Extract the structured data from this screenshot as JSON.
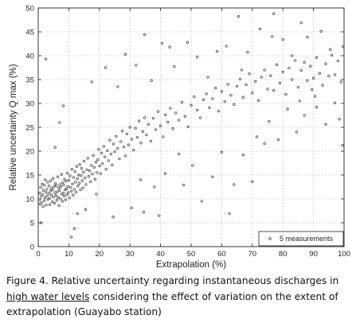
{
  "chart_data": {
    "type": "scatter",
    "xlabel": "Extrapolation (%)",
    "ylabel": "Relative uncertainty Q max (%)",
    "xlim": [
      0,
      100
    ],
    "ylim": [
      0,
      50
    ],
    "xticks": [
      0,
      10,
      20,
      30,
      40,
      50,
      60,
      70,
      80,
      90,
      100
    ],
    "yticks": [
      0,
      5,
      10,
      15,
      20,
      25,
      30,
      35,
      40,
      45,
      50
    ],
    "grid": true,
    "legend_position": "bottom-right",
    "marker": "circle-open",
    "series": [
      {
        "name": "5 measurements",
        "points": [
          [
            0.3,
            9.8
          ],
          [
            0.5,
            11.2
          ],
          [
            0.6,
            8.9
          ],
          [
            0.8,
            12.4
          ],
          [
            1.0,
            10.5
          ],
          [
            1.1,
            9.2
          ],
          [
            1.3,
            13.1
          ],
          [
            1.4,
            10.9
          ],
          [
            1.6,
            8.4
          ],
          [
            1.7,
            11.8
          ],
          [
            1.9,
            12.9
          ],
          [
            2.0,
            9.6
          ],
          [
            2.2,
            10.2
          ],
          [
            2.3,
            14.0
          ],
          [
            2.5,
            11.4
          ],
          [
            2.6,
            8.7
          ],
          [
            2.8,
            12.0
          ],
          [
            2.9,
            10.6
          ],
          [
            3.1,
            13.5
          ],
          [
            3.2,
            9.9
          ],
          [
            3.4,
            11.1
          ],
          [
            3.5,
            12.7
          ],
          [
            3.7,
            10.1
          ],
          [
            3.8,
            8.8
          ],
          [
            4.0,
            11.6
          ],
          [
            4.1,
            13.8
          ],
          [
            4.3,
            10.8
          ],
          [
            4.4,
            12.2
          ],
          [
            4.6,
            9.4
          ],
          [
            4.7,
            11.9
          ],
          [
            4.9,
            14.3
          ],
          [
            5.0,
            10.4
          ],
          [
            5.2,
            12.6
          ],
          [
            5.3,
            9.1
          ],
          [
            5.5,
            11.3
          ],
          [
            5.6,
            13.2
          ],
          [
            5.8,
            10.7
          ],
          [
            5.9,
            12.8
          ],
          [
            6.1,
            9.7
          ],
          [
            6.2,
            11.5
          ],
          [
            6.4,
            14.6
          ],
          [
            6.5,
            10.3
          ],
          [
            6.7,
            12.3
          ],
          [
            6.8,
            8.6
          ],
          [
            7.0,
            11.7
          ],
          [
            7.1,
            13.0
          ],
          [
            7.3,
            10.0
          ],
          [
            7.4,
            12.5
          ],
          [
            7.6,
            15.1
          ],
          [
            7.7,
            11.0
          ],
          [
            7.9,
            9.5
          ],
          [
            8.0,
            13.4
          ],
          [
            8.2,
            11.2
          ],
          [
            8.3,
            12.9
          ],
          [
            8.5,
            10.6
          ],
          [
            8.6,
            14.1
          ],
          [
            8.8,
            11.9
          ],
          [
            8.9,
            9.8
          ],
          [
            9.1,
            13.7
          ],
          [
            9.2,
            12.1
          ],
          [
            9.4,
            10.9
          ],
          [
            9.5,
            15.4
          ],
          [
            9.7,
            12.6
          ],
          [
            9.8,
            11.3
          ],
          [
            10.0,
            13.9
          ],
          [
            10.2,
            10.2
          ],
          [
            10.4,
            14.8
          ],
          [
            10.6,
            12.4
          ],
          [
            10.8,
            11.6
          ],
          [
            11.0,
            16.2
          ],
          [
            11.2,
            13.1
          ],
          [
            11.4,
            10.8
          ],
          [
            11.6,
            14.5
          ],
          [
            11.8,
            12.0
          ],
          [
            12.0,
            15.7
          ],
          [
            12.2,
            13.5
          ],
          [
            12.4,
            11.4
          ],
          [
            12.6,
            16.8
          ],
          [
            12.8,
            14.2
          ],
          [
            13.0,
            12.7
          ],
          [
            13.2,
            15.0
          ],
          [
            13.4,
            13.3
          ],
          [
            13.6,
            17.2
          ],
          [
            13.8,
            11.9
          ],
          [
            14.0,
            14.9
          ],
          [
            14.2,
            16.4
          ],
          [
            14.4,
            13.8
          ],
          [
            14.6,
            12.3
          ],
          [
            14.8,
            15.6
          ],
          [
            15.0,
            17.9
          ],
          [
            15.3,
            14.4
          ],
          [
            15.6,
            13.0
          ],
          [
            15.9,
            16.1
          ],
          [
            16.2,
            18.5
          ],
          [
            16.5,
            14.7
          ],
          [
            16.8,
            15.9
          ],
          [
            17.1,
            13.6
          ],
          [
            17.4,
            17.0
          ],
          [
            17.7,
            15.2
          ],
          [
            18.0,
            19.1
          ],
          [
            18.3,
            16.6
          ],
          [
            18.6,
            14.1
          ],
          [
            18.9,
            17.7
          ],
          [
            19.2,
            15.5
          ],
          [
            19.5,
            18.2
          ],
          [
            19.8,
            20.4
          ],
          [
            20.1,
            16.9
          ],
          [
            20.4,
            15.3
          ],
          [
            20.7,
            19.6
          ],
          [
            21.0,
            17.4
          ],
          [
            21.4,
            21.0
          ],
          [
            21.8,
            18.8
          ],
          [
            22.2,
            16.2
          ],
          [
            22.6,
            20.1
          ],
          [
            23.0,
            18.0
          ],
          [
            23.4,
            22.3
          ],
          [
            23.8,
            19.4
          ],
          [
            24.2,
            17.1
          ],
          [
            24.6,
            21.5
          ],
          [
            25.0,
            19.9
          ],
          [
            25.5,
            23.1
          ],
          [
            26.0,
            20.6
          ],
          [
            26.5,
            18.4
          ],
          [
            27.0,
            22.0
          ],
          [
            27.5,
            24.2
          ],
          [
            28.0,
            20.9
          ],
          [
            28.5,
            19.0
          ],
          [
            29.0,
            23.6
          ],
          [
            29.5,
            21.3
          ],
          [
            30.0,
            25.0
          ],
          [
            30.6,
            22.5
          ],
          [
            31.2,
            20.2
          ],
          [
            31.8,
            24.8
          ],
          [
            32.4,
            22.9
          ],
          [
            33.0,
            26.3
          ],
          [
            33.6,
            21.7
          ],
          [
            34.2,
            24.1
          ],
          [
            34.8,
            27.0
          ],
          [
            35.4,
            23.4
          ],
          [
            36.0,
            25.6
          ],
          [
            36.8,
            22.1
          ],
          [
            37.6,
            26.9
          ],
          [
            38.4,
            24.5
          ],
          [
            39.2,
            28.3
          ],
          [
            40.0,
            25.3
          ],
          [
            40.8,
            23.0
          ],
          [
            41.6,
            27.6
          ],
          [
            42.4,
            26.1
          ],
          [
            43.2,
            29.0
          ],
          [
            44.0,
            24.7
          ],
          [
            45.0,
            28.0
          ],
          [
            46.0,
            26.5
          ],
          [
            47.0,
            30.2
          ],
          [
            48.0,
            27.3
          ],
          [
            49.0,
            25.1
          ],
          [
            50.0,
            29.6
          ],
          [
            51.0,
            31.4
          ],
          [
            52.0,
            28.6
          ],
          [
            53.0,
            27.0
          ],
          [
            54.0,
            30.8
          ],
          [
            55.0,
            32.0
          ],
          [
            56.0,
            29.1
          ],
          [
            57.0,
            31.0
          ],
          [
            58.0,
            33.2
          ],
          [
            59.0,
            28.4
          ],
          [
            60.0,
            32.5
          ],
          [
            61.0,
            30.4
          ],
          [
            62.0,
            34.0
          ],
          [
            63.0,
            31.7
          ],
          [
            64.0,
            29.8
          ],
          [
            65.0,
            33.6
          ],
          [
            66.0,
            35.1
          ],
          [
            67.0,
            31.3
          ],
          [
            68.0,
            33.9
          ],
          [
            69.0,
            36.2
          ],
          [
            70.0,
            32.2
          ],
          [
            71.0,
            34.6
          ],
          [
            72.0,
            30.6
          ],
          [
            73.0,
            35.5
          ],
          [
            74.0,
            37.0
          ],
          [
            75.0,
            33.0
          ],
          [
            76.0,
            35.8
          ],
          [
            77.0,
            32.7
          ],
          [
            78.0,
            38.1
          ],
          [
            79.0,
            34.3
          ],
          [
            80.0,
            36.6
          ],
          [
            81.0,
            31.9
          ],
          [
            82.0,
            37.4
          ],
          [
            83.0,
            35.0
          ],
          [
            84.0,
            39.0
          ],
          [
            85.0,
            33.4
          ],
          [
            86.0,
            36.9
          ],
          [
            87.0,
            38.6
          ],
          [
            88.0,
            34.8
          ],
          [
            89.0,
            37.8
          ],
          [
            90.0,
            35.3
          ],
          [
            91.0,
            39.6
          ],
          [
            92.0,
            36.3
          ],
          [
            93.0,
            33.8
          ],
          [
            94.0,
            38.3
          ],
          [
            95.0,
            35.7
          ],
          [
            96.0,
            40.1
          ],
          [
            97.0,
            36.0
          ],
          [
            98.0,
            38.9
          ],
          [
            99.0,
            34.5
          ],
          [
            1.0,
            5.0
          ],
          [
            2.5,
            39.3
          ],
          [
            5.5,
            20.8
          ],
          [
            7.0,
            26.0
          ],
          [
            8.2,
            29.5
          ],
          [
            10.8,
            2.0
          ],
          [
            11.8,
            3.8
          ],
          [
            12.8,
            6.9
          ],
          [
            15.5,
            7.8
          ],
          [
            17.5,
            34.5
          ],
          [
            19.0,
            11.0
          ],
          [
            22.0,
            37.5
          ],
          [
            24.5,
            6.2
          ],
          [
            26.0,
            33.5
          ],
          [
            28.5,
            40.3
          ],
          [
            30.5,
            8.1
          ],
          [
            32.0,
            38.0
          ],
          [
            33.5,
            14.0
          ],
          [
            34.5,
            7.2
          ],
          [
            34.8,
            44.4
          ],
          [
            37.0,
            34.8
          ],
          [
            38.0,
            12.5
          ],
          [
            39.5,
            6.5
          ],
          [
            40.5,
            42.6
          ],
          [
            41.5,
            15.3
          ],
          [
            43.0,
            41.8
          ],
          [
            44.5,
            37.7
          ],
          [
            46.0,
            19.4
          ],
          [
            47.5,
            12.9
          ],
          [
            48.8,
            42.8
          ],
          [
            50.5,
            17.0
          ],
          [
            52.0,
            39.7
          ],
          [
            53.5,
            9.5
          ],
          [
            55.5,
            35.5
          ],
          [
            57.0,
            14.6
          ],
          [
            58.5,
            40.9
          ],
          [
            60.0,
            19.8
          ],
          [
            61.5,
            42.0
          ],
          [
            62.5,
            6.9
          ],
          [
            64.0,
            13.0
          ],
          [
            65.5,
            48.2
          ],
          [
            67.0,
            19.2
          ],
          [
            68.5,
            40.7
          ],
          [
            70.0,
            13.6
          ],
          [
            71.5,
            23.0
          ],
          [
            72.5,
            45.6
          ],
          [
            74.0,
            21.6
          ],
          [
            75.5,
            26.2
          ],
          [
            77.0,
            48.8
          ],
          [
            78.5,
            22.4
          ],
          [
            80.0,
            43.4
          ],
          [
            81.5,
            28.8
          ],
          [
            83.0,
            40.0
          ],
          [
            84.5,
            24.0
          ],
          [
            86.0,
            46.9
          ],
          [
            87.0,
            27.5
          ],
          [
            88.0,
            43.9
          ],
          [
            89.5,
            32.9
          ],
          [
            91.0,
            29.2
          ],
          [
            92.5,
            45.1
          ],
          [
            94.0,
            25.6
          ],
          [
            95.5,
            41.3
          ],
          [
            97.0,
            30.1
          ],
          [
            98.5,
            26.7
          ],
          [
            99.5,
            21.2
          ],
          [
            99.6,
            41.9
          ],
          [
            90.5,
            31.5
          ],
          [
            85.5,
            30.5
          ],
          [
            76.5,
            44.0
          ],
          [
            66.5,
            37.0
          ]
        ]
      }
    ]
  },
  "caption": {
    "part1": "Figure 4. Relative uncertainty regarding instantaneous discharges in ",
    "underlined": "high water levels",
    "part2": " considering the effect of variation on the extent of extrapolation (Guayabo station)"
  }
}
